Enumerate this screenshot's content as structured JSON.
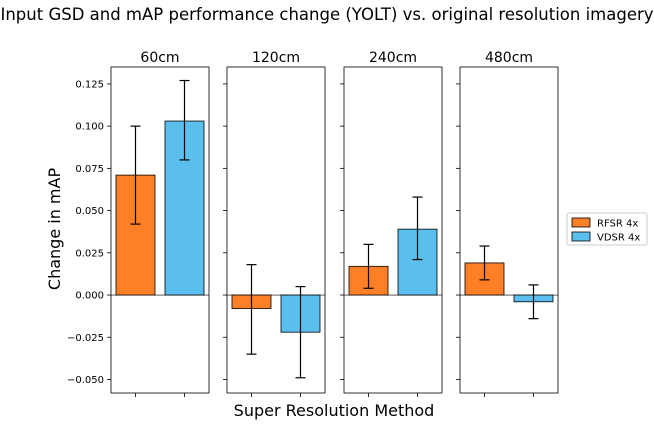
{
  "chart_data": {
    "type": "bar",
    "title": "Input GSD and mAP performance change (YOLT) vs. original resolution imagery",
    "xlabel": "Super Resolution Method",
    "ylabel": "Change in mAP",
    "ylim": [
      -0.058,
      0.135
    ],
    "yticks": [
      -0.05,
      -0.025,
      0.0,
      0.025,
      0.05,
      0.075,
      0.1,
      0.125
    ],
    "ytick_labels": [
      "−0.050",
      "−0.025",
      "0.000",
      "0.025",
      "0.050",
      "0.075",
      "0.100",
      "0.125"
    ],
    "legend_position": "right",
    "series": [
      {
        "name": "RFSR 4x",
        "color": "#ff7f27"
      },
      {
        "name": "VDSR 4x",
        "color": "#5bbfed"
      }
    ],
    "panels": [
      {
        "title": "60cm",
        "values": [
          0.071,
          0.103
        ],
        "err_low": [
          0.042,
          0.08
        ],
        "err_high": [
          0.1,
          0.127
        ]
      },
      {
        "title": "120cm",
        "values": [
          -0.008,
          -0.022
        ],
        "err_low": [
          -0.035,
          -0.049
        ],
        "err_high": [
          0.018,
          0.005
        ]
      },
      {
        "title": "240cm",
        "values": [
          0.017,
          0.039
        ],
        "err_low": [
          0.004,
          0.021
        ],
        "err_high": [
          0.03,
          0.058
        ]
      },
      {
        "title": "480cm",
        "values": [
          0.019,
          -0.004
        ],
        "err_low": [
          0.009,
          -0.014
        ],
        "err_high": [
          0.029,
          0.006
        ]
      }
    ]
  }
}
